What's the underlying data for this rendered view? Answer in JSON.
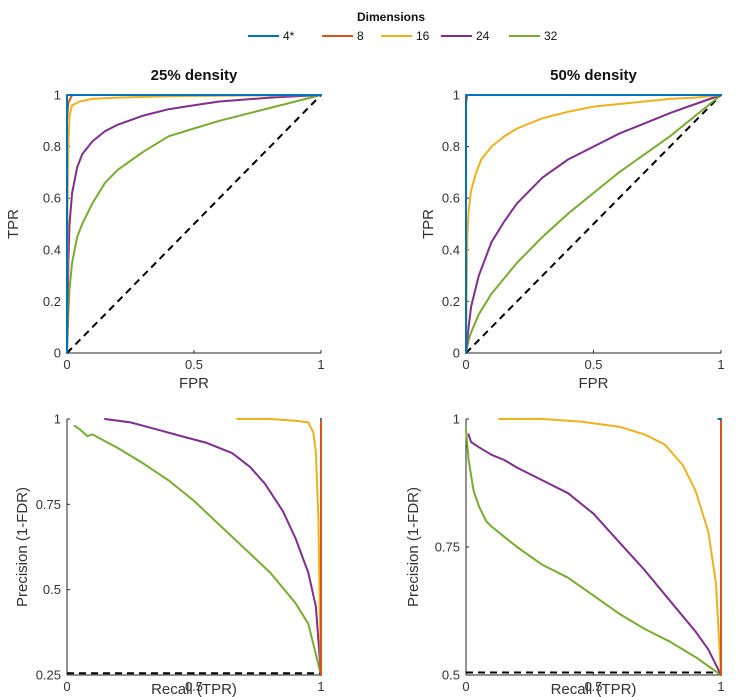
{
  "legend": {
    "title": "Dimensions",
    "entries": [
      {
        "label": "4*",
        "color": "#0072BD"
      },
      {
        "label": "8",
        "color": "#D95319"
      },
      {
        "label": "16",
        "color": "#EDB120"
      },
      {
        "label": "24",
        "color": "#7E2F8E"
      },
      {
        "label": "32",
        "color": "#77AC30"
      }
    ]
  },
  "chart_data": [
    {
      "id": "roc25",
      "type": "line",
      "title": "25% density",
      "xlabel": "FPR",
      "ylabel": "TPR",
      "xlim": [
        0,
        1
      ],
      "ylim": [
        0,
        1
      ],
      "xticks": [
        0,
        0.5,
        1
      ],
      "xtick_labels": [
        "0",
        "0.5",
        "1"
      ],
      "yticks": [
        0,
        0.2,
        0.4,
        0.6,
        0.8,
        1
      ],
      "ytick_labels": [
        "0",
        "0.2",
        "0.4",
        "0.6",
        "0.8",
        "1"
      ],
      "reference": {
        "x": [
          0,
          1
        ],
        "y": [
          0,
          1
        ],
        "style": "dashed"
      },
      "series": [
        {
          "name": "4*",
          "color": "#0072BD",
          "x": [
            0,
            0,
            1
          ],
          "y": [
            0,
            1,
            1
          ]
        },
        {
          "name": "8",
          "color": "#D95319",
          "x": [
            0,
            0,
            0.005,
            0.02,
            1
          ],
          "y": [
            0,
            0.9,
            0.97,
            1,
            1
          ]
        },
        {
          "name": "16",
          "color": "#EDB120",
          "x": [
            0,
            0.002,
            0.005,
            0.01,
            0.02,
            0.05,
            0.1,
            0.2,
            0.4,
            0.7,
            1
          ],
          "y": [
            0,
            0.55,
            0.8,
            0.92,
            0.96,
            0.975,
            0.985,
            0.99,
            0.995,
            0.998,
            1
          ]
        },
        {
          "name": "24",
          "color": "#7E2F8E",
          "x": [
            0,
            0.005,
            0.01,
            0.02,
            0.04,
            0.06,
            0.1,
            0.15,
            0.2,
            0.3,
            0.4,
            0.5,
            0.6,
            0.8,
            1
          ],
          "y": [
            0,
            0.35,
            0.5,
            0.62,
            0.72,
            0.77,
            0.82,
            0.86,
            0.885,
            0.92,
            0.945,
            0.96,
            0.975,
            0.99,
            1
          ]
        },
        {
          "name": "32",
          "color": "#77AC30",
          "x": [
            0,
            0.005,
            0.01,
            0.02,
            0.04,
            0.06,
            0.1,
            0.15,
            0.2,
            0.3,
            0.4,
            0.5,
            0.6,
            0.8,
            1
          ],
          "y": [
            0,
            0.15,
            0.25,
            0.35,
            0.45,
            0.5,
            0.58,
            0.66,
            0.71,
            0.78,
            0.84,
            0.87,
            0.9,
            0.95,
            1
          ]
        }
      ]
    },
    {
      "id": "roc50",
      "type": "line",
      "title": "50% density",
      "xlabel": "FPR",
      "ylabel": "TPR",
      "xlim": [
        0,
        1
      ],
      "ylim": [
        0,
        1
      ],
      "xticks": [
        0,
        0.5,
        1
      ],
      "xtick_labels": [
        "0",
        "0.5",
        "1"
      ],
      "yticks": [
        0,
        0.2,
        0.4,
        0.6,
        0.8,
        1
      ],
      "ytick_labels": [
        "0",
        "0.2",
        "0.4",
        "0.6",
        "0.8",
        "1"
      ],
      "reference": {
        "x": [
          0,
          1
        ],
        "y": [
          0,
          1
        ],
        "style": "dashed"
      },
      "series": [
        {
          "name": "4*",
          "color": "#0072BD",
          "x": [
            0,
            0,
            1
          ],
          "y": [
            0,
            1,
            1
          ]
        },
        {
          "name": "8",
          "color": "#D95319",
          "x": [
            0,
            0,
            0.005,
            1
          ],
          "y": [
            0,
            0.97,
            1,
            1
          ]
        },
        {
          "name": "16",
          "color": "#EDB120",
          "x": [
            0,
            0.003,
            0.005,
            0.01,
            0.02,
            0.04,
            0.06,
            0.1,
            0.15,
            0.2,
            0.3,
            0.4,
            0.5,
            0.6,
            0.7,
            0.8,
            0.9,
            1
          ],
          "y": [
            0,
            0.3,
            0.45,
            0.55,
            0.63,
            0.7,
            0.75,
            0.8,
            0.84,
            0.87,
            0.91,
            0.935,
            0.955,
            0.965,
            0.975,
            0.985,
            0.99,
            1
          ]
        },
        {
          "name": "24",
          "color": "#7E2F8E",
          "x": [
            0,
            0.01,
            0.02,
            0.05,
            0.1,
            0.15,
            0.2,
            0.3,
            0.4,
            0.5,
            0.6,
            0.7,
            0.8,
            0.9,
            1
          ],
          "y": [
            0,
            0.1,
            0.18,
            0.3,
            0.43,
            0.51,
            0.58,
            0.68,
            0.75,
            0.8,
            0.85,
            0.89,
            0.93,
            0.965,
            1
          ]
        },
        {
          "name": "32",
          "color": "#77AC30",
          "x": [
            0,
            0.01,
            0.02,
            0.05,
            0.1,
            0.2,
            0.3,
            0.4,
            0.5,
            0.6,
            0.7,
            0.8,
            0.9,
            1
          ],
          "y": [
            0,
            0.05,
            0.08,
            0.15,
            0.23,
            0.35,
            0.45,
            0.54,
            0.62,
            0.7,
            0.77,
            0.84,
            0.92,
            1
          ]
        }
      ]
    },
    {
      "id": "pr25",
      "type": "line",
      "title": "",
      "xlabel": "Recall (TPR)",
      "ylabel": "Precision (1-FDR)",
      "xlim": [
        0,
        1
      ],
      "ylim": [
        0.25,
        1
      ],
      "xticks": [
        0,
        0.5,
        1
      ],
      "xtick_labels": [
        "0",
        "0.5",
        "1"
      ],
      "yticks": [
        0.25,
        0.5,
        0.75,
        1
      ],
      "ytick_labels": [
        "0.25",
        "0.5",
        "0.75",
        "1"
      ],
      "reference": {
        "x": [
          0,
          1
        ],
        "y": [
          0.255,
          0.255
        ],
        "style": "dashed"
      },
      "series": [
        {
          "name": "4*",
          "color": "#0072BD",
          "x": [
            1,
            1
          ],
          "y": [
            1,
            1
          ]
        },
        {
          "name": "8",
          "color": "#D95319",
          "x": [
            1,
            1,
            1
          ],
          "y": [
            1,
            0.27,
            0.25
          ]
        },
        {
          "name": "16",
          "color": "#EDB120",
          "x": [
            0.67,
            0.8,
            0.9,
            0.95,
            0.97,
            0.98,
            0.99,
            0.995,
            1
          ],
          "y": [
            1,
            1,
            0.995,
            0.99,
            0.96,
            0.9,
            0.7,
            0.45,
            0.25
          ]
        },
        {
          "name": "24",
          "color": "#7E2F8E",
          "x": [
            0.15,
            0.25,
            0.35,
            0.45,
            0.55,
            0.65,
            0.72,
            0.78,
            0.85,
            0.9,
            0.95,
            0.98,
            1
          ],
          "y": [
            1,
            0.99,
            0.97,
            0.95,
            0.93,
            0.9,
            0.86,
            0.81,
            0.73,
            0.65,
            0.55,
            0.45,
            0.25
          ]
        },
        {
          "name": "32",
          "color": "#77AC30",
          "x": [
            0.03,
            0.05,
            0.08,
            0.1,
            0.15,
            0.2,
            0.3,
            0.4,
            0.5,
            0.6,
            0.7,
            0.8,
            0.9,
            0.95,
            1
          ],
          "y": [
            0.98,
            0.97,
            0.95,
            0.955,
            0.935,
            0.915,
            0.87,
            0.82,
            0.76,
            0.69,
            0.62,
            0.55,
            0.46,
            0.4,
            0.25
          ]
        }
      ]
    },
    {
      "id": "pr50",
      "type": "line",
      "title": "",
      "xlabel": "Recall (TPR)",
      "ylabel": "Precision (1-FDR)",
      "xlim": [
        0,
        1
      ],
      "ylim": [
        0.5,
        1
      ],
      "xticks": [
        0,
        0.5,
        1
      ],
      "xtick_labels": [
        "0",
        "0.5",
        "1"
      ],
      "yticks": [
        0.5,
        0.75,
        1
      ],
      "ytick_labels": [
        "0.5",
        "0.75",
        "1"
      ],
      "reference": {
        "x": [
          0,
          1
        ],
        "y": [
          0.505,
          0.505
        ],
        "style": "dashed"
      },
      "series": [
        {
          "name": "4*",
          "color": "#0072BD",
          "x": [
            0.99,
            1
          ],
          "y": [
            1,
            1
          ]
        },
        {
          "name": "8",
          "color": "#D95319",
          "x": [
            0.99,
            1,
            1
          ],
          "y": [
            1,
            1,
            0.5
          ]
        },
        {
          "name": "16",
          "color": "#EDB120",
          "x": [
            0.13,
            0.3,
            0.45,
            0.6,
            0.7,
            0.78,
            0.85,
            0.9,
            0.95,
            0.98,
            1
          ],
          "y": [
            1,
            1,
            0.995,
            0.985,
            0.97,
            0.95,
            0.91,
            0.86,
            0.78,
            0.68,
            0.5
          ]
        },
        {
          "name": "24",
          "color": "#7E2F8E",
          "x": [
            0.01,
            0.02,
            0.05,
            0.1,
            0.15,
            0.2,
            0.3,
            0.4,
            0.5,
            0.6,
            0.7,
            0.8,
            0.9,
            0.95,
            1
          ],
          "y": [
            0.97,
            0.955,
            0.945,
            0.93,
            0.92,
            0.905,
            0.88,
            0.855,
            0.815,
            0.76,
            0.705,
            0.645,
            0.585,
            0.55,
            0.5
          ]
        },
        {
          "name": "32",
          "color": "#77AC30",
          "x": [
            0,
            0.01,
            0.02,
            0.03,
            0.05,
            0.08,
            0.1,
            0.15,
            0.2,
            0.3,
            0.4,
            0.5,
            0.6,
            0.7,
            0.8,
            0.9,
            1
          ],
          "y": [
            0.98,
            0.92,
            0.89,
            0.86,
            0.83,
            0.8,
            0.79,
            0.77,
            0.75,
            0.715,
            0.69,
            0.655,
            0.62,
            0.59,
            0.565,
            0.535,
            0.5
          ]
        }
      ]
    }
  ]
}
